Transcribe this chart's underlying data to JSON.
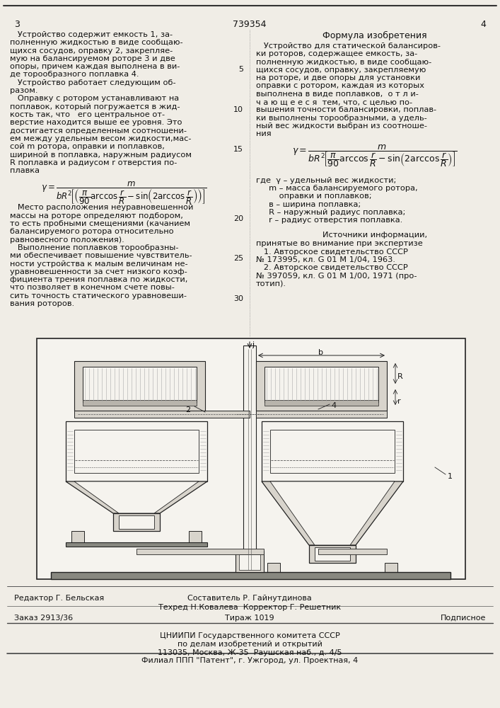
{
  "bg_color": "#f0ede6",
  "text_color": "#111111",
  "page_num_left": "3",
  "page_num_center": "739354",
  "page_num_right": "4",
  "left_col_text": [
    "   Устройство содержит емкость 1, за-",
    "полненную жидкостью в виде сообщаю-",
    "щихся сосудов, оправку 2, закрепляе-",
    "мую на балансируемом роторе 3 и две",
    "опоры, причем каждая выполнена в ви-",
    "де торообразного поплавка 4.",
    "   Устройство работает следующим об-",
    "разом.",
    "   Оправку с ротором устанавливают на",
    "поплавок, который погружается в жид-",
    "кость так, что   его центральное от-",
    "верстие находится выше ее уровня. Это",
    "достигается определенным соотношени-",
    "ем между удельным весом жидкости,мас-",
    "сой m ротора, оправки и поплавков,",
    "шириной в поплавка, наружным радиусом",
    "R поплавка и радиусом r отверстия по-",
    "плавка"
  ],
  "left_col_text2": [
    "   Место расположения неуравновешенной",
    "массы на роторе определяют подбором,",
    "то есть пробными смещениями (качанием",
    "балансируемого ротора относительно",
    "равновесного положения).",
    "   Выполнение поплавков торообразны-",
    "ми обеспечивает повышение чувствитель-",
    "ности устройства к малым величинам не-",
    "уравновешенности за счет низкого коэф-",
    "фициента трения поплавка по жидкости,",
    "что позволяет в конечном счете повы-",
    "сить точность статического уравновеши-",
    "вания роторов."
  ],
  "right_col_header": "Формула изобретения",
  "right_col_text": [
    "   Устройство для статической балансиров-",
    "ки роторов, содержащее емкость, за-",
    "полненную жидкостью, в виде сообщаю-",
    "щихся сосудов, оправку, закрепляемую",
    "на роторе, и две опоры для установки",
    "оправки с ротором, каждая из которых",
    "выполнена в виде поплавков,  о т л и-",
    "ч а ю щ е е с я  тем, что, с целью по-",
    "вышения точности балансировки, поплав-",
    "ки выполнены торообразными, а удель-",
    "ный вес жидкости выбран из соотноше-",
    "ния"
  ],
  "right_col_text2_lines": [
    "где  γ – удельный вес жидкости;",
    "     m – масса балансируемого ротора,",
    "         оправки и поплавков;",
    "     в – ширина поплавка;",
    "     R – наружный радиус поплавка;",
    "     r – радиус отверстия поплавка."
  ],
  "sources_header": "Источники информации,",
  "sources_text": [
    "принятые во внимание при экспертизе",
    "   1. Авторское свидетельство СССР",
    "№ 173995, кл. G 01 M 1/04, 1963.",
    "   2. Авторское свидетельство СССР",
    "№ 397059, кл. G 01 M 1/00, 1971 (про-",
    "тотип)."
  ],
  "footer_line1_left": "Редактор Г. Бельская",
  "footer_line1_mid": "Составитель Р. Гайнутдинова",
  "footer_line2_mid": "Техред Н.Ковалева  Корректор Г. Решетник",
  "footer_line3_left": "Заказ 2913/36",
  "footer_line3_mid": "Тираж 1019",
  "footer_line3_right": "Подписное",
  "footer_org": "ЦНИИПИ Государственного комитета СССР",
  "footer_org2": "по делам изобретений и открытий",
  "footer_addr": "113035, Москва, Ж-35  Раушская наб., д. 4/5",
  "footer_branch": "Филиал ППП \"Патент\", г. Ужгород, ул. Проектная, 4"
}
